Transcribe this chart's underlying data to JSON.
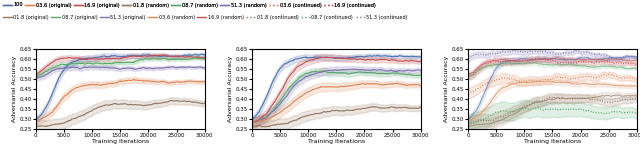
{
  "color_100": "#4c72b0",
  "color_018": "#937860",
  "color_036": "#dd8452",
  "color_087": "#55a868",
  "color_169": "#c44e52",
  "color_513": "#8172b2",
  "xlabel": "Training Iterations",
  "ylabel": "Adversarial Accuracy",
  "x_max": 30000,
  "ylim_lo": 0.25,
  "ylim_hi": 0.65,
  "n_points": 500,
  "legend_row1": [
    "100",
    "03.6 (original)",
    "16.9 (original)",
    "01.8 (random)",
    "08.7 (random)",
    "51.3 (random)",
    "03.6 (continued)",
    "16.9 (continued)"
  ],
  "legend_row2": [
    "01.8 (original)",
    "08.7 (original)",
    "51.3 (original)",
    "03.6 (random)",
    "16.9 (random)",
    "01.8 (continued)",
    "08.7 (continued)",
    "51.3 (continued)"
  ]
}
